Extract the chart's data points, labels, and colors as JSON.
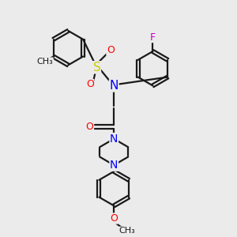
{
  "bg_color": "#ebebeb",
  "bond_color": "#1a1a1a",
  "N_color": "#0000ff",
  "O_color": "#ff0000",
  "S_color": "#cccc00",
  "F_color": "#cc00cc",
  "C_color": "#1a1a1a",
  "line_width": 1.6,
  "font_size": 9,
  "fig_size": [
    3.0,
    3.0
  ],
  "dpi": 100,
  "xlim": [
    0,
    10
  ],
  "ylim": [
    0,
    10
  ]
}
